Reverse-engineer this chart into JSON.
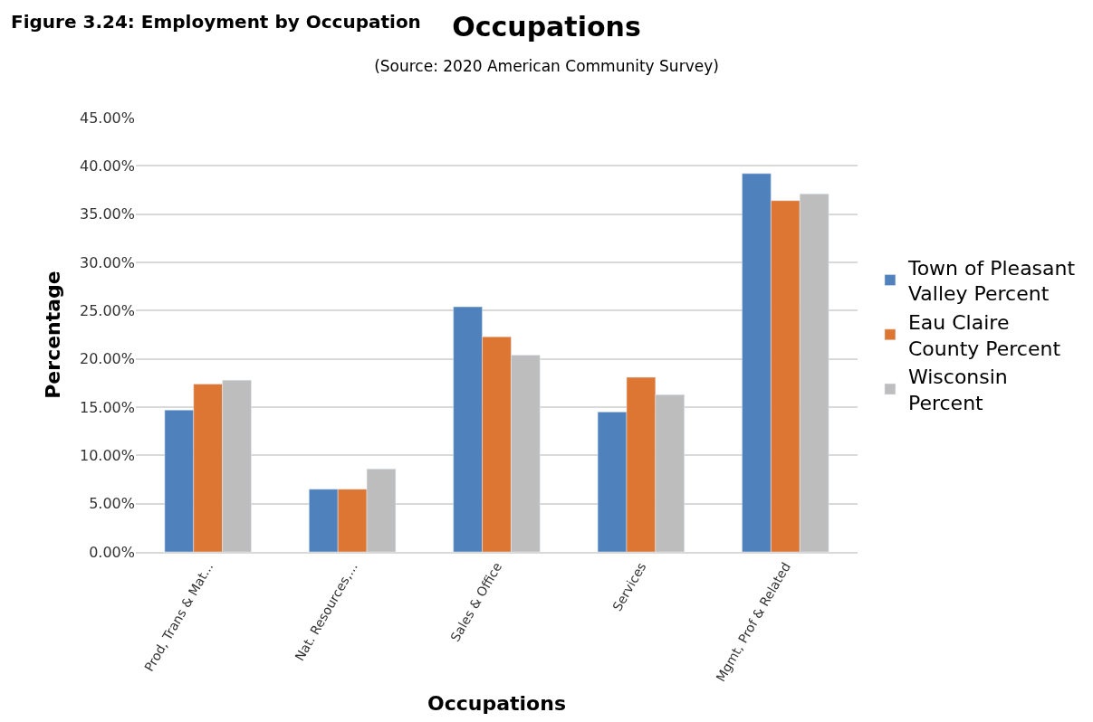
{
  "chart_data": {
    "type": "bar",
    "title": "Occupations",
    "subtitle": "(Source: 2020 American Community Survey)",
    "xlabel": "Occupations",
    "ylabel": "Percentage",
    "annotations": [
      "Figure 3.24: Employment by Occupation"
    ],
    "categories": [
      "Prod, Trans & Mat...",
      "Nat. Resources,...",
      "Sales & Office",
      "Services",
      "Mgmt, Prof & Related"
    ],
    "series": [
      {
        "name": "Town of Pleasant Valley Percent",
        "color": "#4f81bd",
        "values": [
          14.7,
          6.5,
          25.4,
          14.5,
          39.2
        ]
      },
      {
        "name": "Eau Claire County Percent",
        "color": "#dd7632",
        "values": [
          17.4,
          6.5,
          22.3,
          18.1,
          36.4
        ]
      },
      {
        "name": "Wisconsin Percent",
        "color": "#bdbdbd",
        "values": [
          17.8,
          8.6,
          20.4,
          16.3,
          37.1
        ]
      }
    ],
    "ylim": [
      0,
      45
    ],
    "yticks": [
      {
        "value": 0,
        "label": "0.00%"
      },
      {
        "value": 5,
        "label": "5.00%"
      },
      {
        "value": 10,
        "label": "10.00%"
      },
      {
        "value": 15,
        "label": "15.00%"
      },
      {
        "value": 20,
        "label": "20.00%"
      },
      {
        "value": 25,
        "label": "25.00%"
      },
      {
        "value": 30,
        "label": "30.00%"
      },
      {
        "value": 35,
        "label": "35.00%"
      },
      {
        "value": 40,
        "label": "40.00%"
      },
      {
        "value": 45,
        "label": "45.00%"
      }
    ],
    "grid": "y",
    "legend": "right"
  }
}
